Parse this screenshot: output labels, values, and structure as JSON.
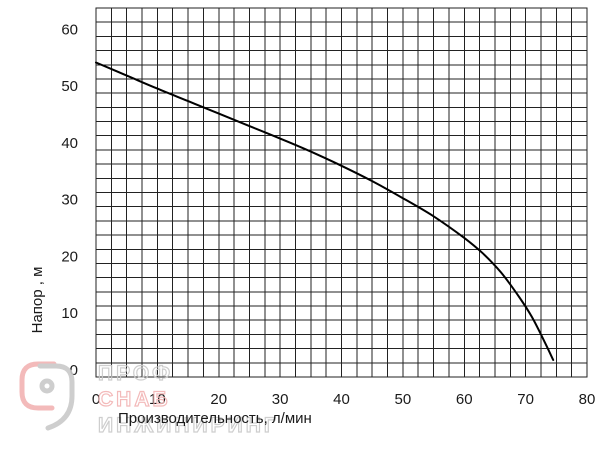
{
  "chart_data": {
    "type": "line",
    "title": "",
    "xlabel": "Производительность, л/мин",
    "ylabel": "Напор , м",
    "xlim": [
      0,
      80
    ],
    "ylim": [
      0,
      65
    ],
    "x_ticks": [
      0,
      10,
      20,
      30,
      40,
      50,
      60,
      70,
      80
    ],
    "y_ticks": [
      0,
      10,
      20,
      30,
      40,
      50,
      60
    ],
    "grid": true,
    "legend": "none",
    "series": [
      {
        "color": "#000000",
        "points": [
          [
            0,
            55.4
          ],
          [
            5,
            53.1
          ],
          [
            10,
            50.8
          ],
          [
            15,
            48.6
          ],
          [
            20,
            46.4
          ],
          [
            25,
            44.2
          ],
          [
            30,
            42.0
          ],
          [
            35,
            39.7
          ],
          [
            40,
            37.2
          ],
          [
            45,
            34.5
          ],
          [
            50,
            31.5
          ],
          [
            55,
            28.3
          ],
          [
            60,
            24.5
          ],
          [
            63,
            21.8
          ],
          [
            66,
            18.4
          ],
          [
            69,
            14.0
          ],
          [
            71,
            10.6
          ],
          [
            73,
            6.4
          ],
          [
            74.5,
            3.0
          ]
        ]
      }
    ]
  },
  "watermark": {
    "line1": "ПРОФ",
    "line2": "СНАБ",
    "line3": "ИНЖИНИРИНГ",
    "color_gray": "#c9c9c9",
    "color_red": "#f2b3b3"
  }
}
